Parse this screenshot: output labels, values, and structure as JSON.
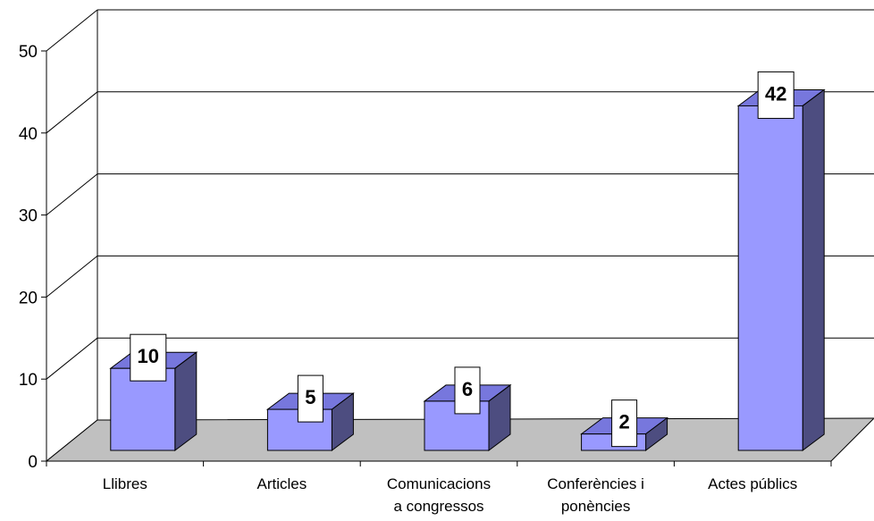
{
  "chart_data": {
    "type": "bar",
    "categories": [
      [
        "Llibres"
      ],
      [
        "Articles"
      ],
      [
        "Comunicacions",
        "a congressos"
      ],
      [
        "Conferències i",
        "ponències"
      ],
      [
        "Actes públics"
      ]
    ],
    "values": [
      10,
      5,
      6,
      2,
      42
    ],
    "ylim": [
      0,
      50
    ],
    "yticks": [
      0,
      10,
      20,
      30,
      40,
      50
    ],
    "grid": true,
    "style": "3d-column",
    "colors": {
      "bar_front": "#9999ff",
      "bar_top": "#7777dd",
      "bar_side": "#4d4d80",
      "floor": "#c0c0c0",
      "label_box": "#ffffff"
    }
  }
}
